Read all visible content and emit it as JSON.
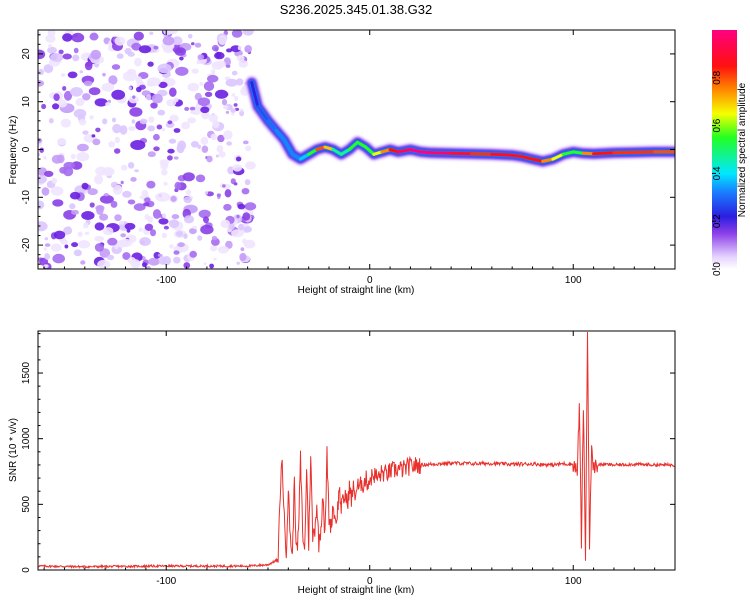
{
  "title": "S236.2025.345.01.38.G32",
  "chart_data": [
    {
      "type": "heatmap",
      "name": "spectrogram",
      "xlabel": "Height of straight line (km)",
      "ylabel": "Frequency (Hz)",
      "xlim": [
        -163,
        150
      ],
      "ylim": [
        -25,
        25
      ],
      "xticks": [
        -100,
        0,
        100
      ],
      "yticks": [
        -20,
        -10,
        0,
        10,
        20
      ],
      "colorbar": {
        "label": "Normalized spectral amplitude",
        "range": [
          0,
          1
        ],
        "ticks": [
          0.0,
          0.2,
          0.4,
          0.6,
          0.8
        ],
        "tick_labels": [
          "0.0",
          "0.2",
          "0.4",
          "0.6",
          "0.8"
        ]
      },
      "noise_region_x": [
        -163,
        -60
      ],
      "ridge": {
        "x": [
          -58,
          -55,
          -50,
          -46,
          -42,
          -38,
          -34,
          -30,
          -26,
          -22,
          -18,
          -14,
          -10,
          -6,
          -2,
          2,
          6,
          10,
          14,
          20,
          25,
          30,
          40,
          50,
          60,
          70,
          75,
          80,
          85,
          90,
          95,
          100,
          105,
          110,
          120,
          130,
          140,
          150
        ],
        "freq": [
          14,
          9,
          6,
          4,
          2,
          -1,
          -2,
          -1,
          0,
          0.5,
          0,
          -1,
          0,
          1.5,
          0.5,
          -1,
          -0.5,
          0,
          -0.5,
          0,
          -0.5,
          -0.7,
          -0.8,
          -0.9,
          -1,
          -1.2,
          -1.5,
          -2,
          -2.5,
          -2,
          -1,
          -0.5,
          -0.8,
          -0.9,
          -0.7,
          -0.6,
          -0.5,
          -0.5
        ],
        "amplitude": [
          0.2,
          0.25,
          0.3,
          0.3,
          0.35,
          0.3,
          0.35,
          0.4,
          0.7,
          0.9,
          0.5,
          0.45,
          0.5,
          0.6,
          0.5,
          0.6,
          0.7,
          0.8,
          0.9,
          1.0,
          1.0,
          1.0,
          0.95,
          0.85,
          0.8,
          0.95,
          0.8,
          0.9,
          0.8,
          0.7,
          0.6,
          0.5,
          0.6,
          0.9,
          0.8,
          0.85,
          0.8,
          0.8
        ]
      }
    },
    {
      "type": "line",
      "name": "snr",
      "xlabel": "Height of straight line (km)",
      "ylabel": "SNR (10 * v/v)",
      "xlim": [
        -163,
        150
      ],
      "ylim": [
        0,
        1820
      ],
      "xticks": [
        -100,
        0,
        100
      ],
      "yticks": [
        0,
        500,
        1000,
        1500
      ],
      "color": "#e8302c",
      "series": [
        {
          "name": "SNR",
          "x": [
            -163,
            -140,
            -120,
            -100,
            -80,
            -60,
            -50,
            -45,
            -44,
            -43,
            -42,
            -41,
            -40,
            -39,
            -38,
            -37,
            -36,
            -35,
            -34,
            -33,
            -32,
            -31,
            -30,
            -29,
            -28,
            -27,
            -26,
            -25,
            -24,
            -23,
            -22,
            -21,
            -20,
            -19,
            -18,
            -17,
            -16,
            -15,
            -14,
            -13,
            -12,
            -11,
            -10,
            -9,
            -8,
            -7,
            -6,
            -5,
            -4,
            -3,
            -2,
            -1,
            0,
            2,
            4,
            6,
            8,
            10,
            12,
            14,
            16,
            18,
            20,
            25,
            30,
            35,
            40,
            50,
            60,
            70,
            80,
            90,
            95,
            100,
            102,
            103,
            104,
            105,
            106,
            107,
            108,
            109,
            110,
            112,
            115,
            120,
            130,
            140,
            150
          ],
          "y": [
            30,
            25,
            28,
            30,
            30,
            30,
            40,
            80,
            600,
            850,
            380,
            150,
            600,
            260,
            90,
            700,
            120,
            280,
            850,
            300,
            120,
            780,
            200,
            880,
            250,
            320,
            500,
            200,
            320,
            600,
            250,
            880,
            400,
            330,
            500,
            380,
            420,
            620,
            480,
            520,
            580,
            500,
            630,
            540,
            620,
            570,
            650,
            610,
            680,
            640,
            700,
            660,
            690,
            730,
            700,
            740,
            730,
            750,
            760,
            770,
            765,
            780,
            790,
            800,
            805,
            810,
            815,
            810,
            812,
            805,
            808,
            800,
            810,
            805,
            750,
            1250,
            200,
            1270,
            100,
            1820,
            200,
            900,
            780,
            800,
            805,
            800,
            805,
            800,
            800
          ]
        }
      ]
    }
  ]
}
